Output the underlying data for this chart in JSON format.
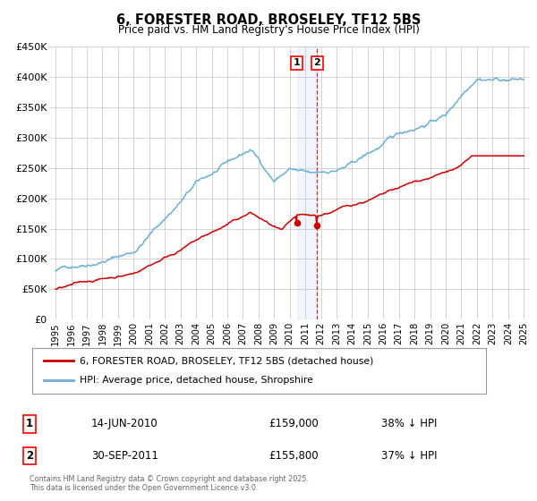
{
  "title": "6, FORESTER ROAD, BROSELEY, TF12 5BS",
  "subtitle": "Price paid vs. HM Land Registry's House Price Index (HPI)",
  "ylim": [
    0,
    450000
  ],
  "yticks": [
    0,
    50000,
    100000,
    150000,
    200000,
    250000,
    300000,
    350000,
    400000,
    450000
  ],
  "ytick_labels": [
    "£0",
    "£50K",
    "£100K",
    "£150K",
    "£200K",
    "£250K",
    "£300K",
    "£350K",
    "£400K",
    "£450K"
  ],
  "hpi_color": "#6baed6",
  "price_color": "#cc0000",
  "bg_color": "#ffffff",
  "grid_color": "#cccccc",
  "sale1_date": 2010.45,
  "sale1_price": 159000,
  "sale1_label": "1",
  "sale1_text": "14-JUN-2010",
  "sale1_amount": "£159,000",
  "sale1_hpi": "38% ↓ HPI",
  "sale2_date": 2011.75,
  "sale2_price": 155800,
  "sale2_label": "2",
  "sale2_text": "30-SEP-2011",
  "sale2_amount": "£155,800",
  "sale2_hpi": "37% ↓ HPI",
  "legend_line1": "6, FORESTER ROAD, BROSELEY, TF12 5BS (detached house)",
  "legend_line2": "HPI: Average price, detached house, Shropshire",
  "footer": "Contains HM Land Registry data © Crown copyright and database right 2025.\nThis data is licensed under the Open Government Licence v3.0.",
  "shaded_region_start": 2010.45,
  "shaded_region_end": 2011.75,
  "xlim_left": 1994.6,
  "xlim_right": 2025.4
}
